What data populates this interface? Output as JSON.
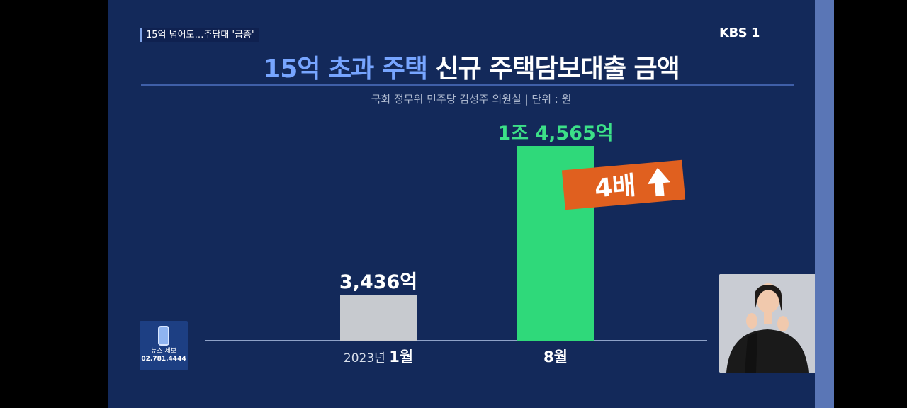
{
  "broadcast": {
    "caption": "15억 넘어도…주담대 '급증'",
    "logo": "KBS 1"
  },
  "title": {
    "highlight": "15억 초과 주택",
    "rest": "신규 주택담보대출 금액"
  },
  "source": "국회 정무위 민주당 김성주 의원실  |  단위 : 원",
  "chart_data": {
    "type": "bar",
    "categories": [
      "1월",
      "8월"
    ],
    "category_prefix": [
      "2023년",
      ""
    ],
    "values": [
      3436,
      14565
    ],
    "value_labels": [
      "3,436억",
      "1조 4,565억"
    ],
    "ylim": [
      0,
      14565
    ],
    "bar_colors": [
      "#c7cacf",
      "#2fd97a"
    ],
    "value_label_colors": [
      "#ffffff",
      "#3ce088"
    ],
    "annotation": {
      "text": "4배",
      "arrow": "up-arrow-icon",
      "background": "#e0601f"
    },
    "grid": false,
    "legend": "none"
  },
  "news_tip": {
    "icon": "phone-icon",
    "label": "뉴스 제보",
    "phone": "02.781.4444"
  },
  "sign_language": {
    "icon": "sign-language-interpreter"
  }
}
